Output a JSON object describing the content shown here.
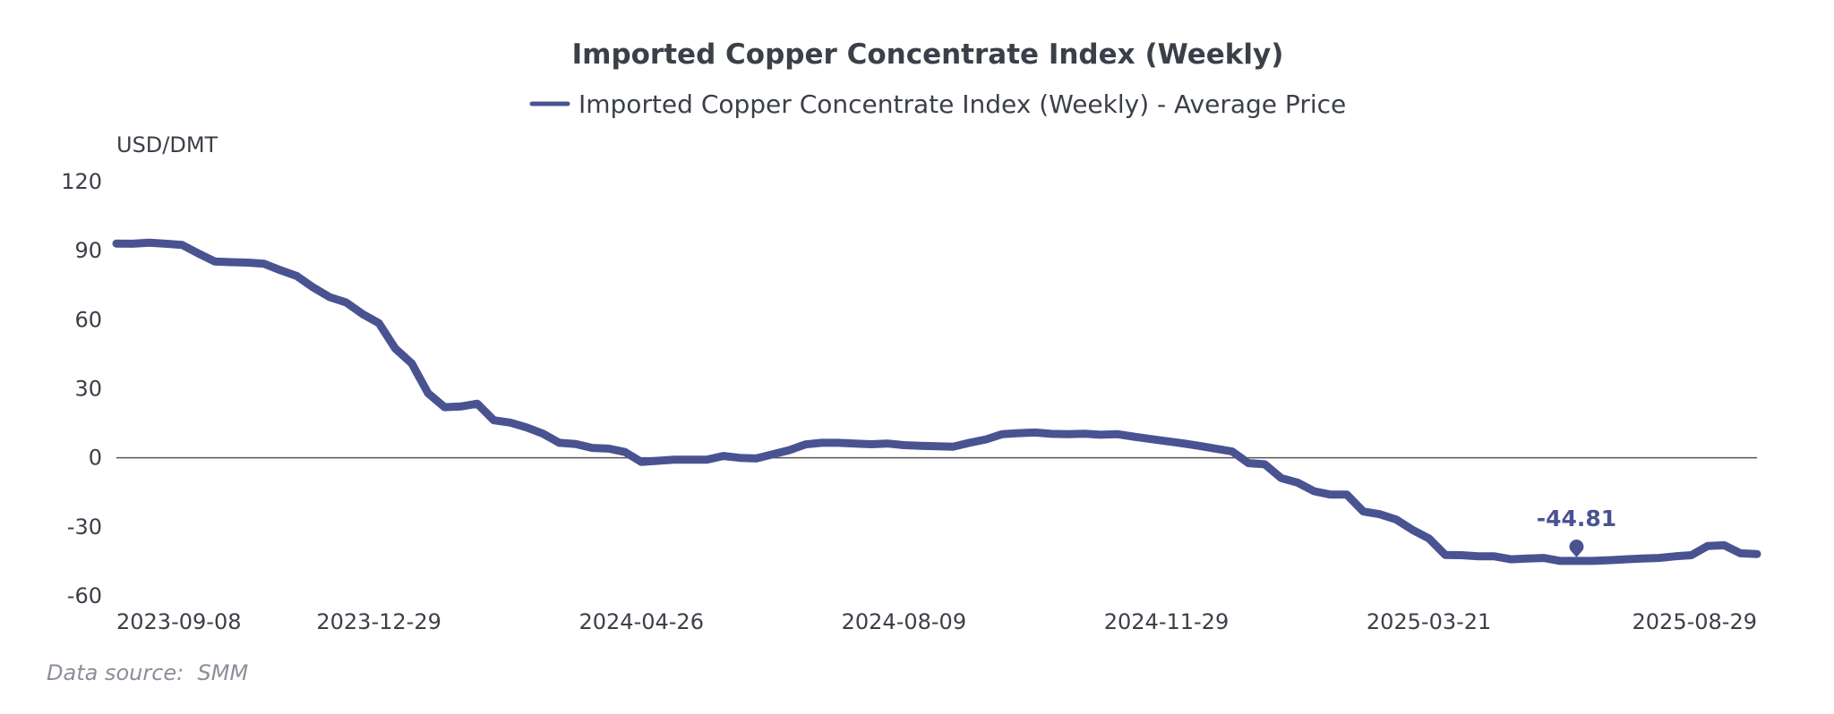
{
  "colors": {
    "series": "#4a5391",
    "text": "#3b3f48",
    "zero_line": "#555555",
    "source": "#8a8f99"
  },
  "source_text": "Data source:  SMM",
  "chart_data": {
    "type": "line",
    "title": "Imported Copper Concentrate Index (Weekly)",
    "unit_label": "USD/DMT",
    "ylim": [
      -60,
      120
    ],
    "y_ticks": [
      120,
      90,
      60,
      30,
      0,
      -30,
      -60
    ],
    "x_tick_labels": [
      "2023-09-08",
      "2023-12-29",
      "2024-04-26",
      "2024-08-09",
      "2024-11-29",
      "2025-03-21",
      "2025-08-29"
    ],
    "grid": false,
    "legend_position": "top",
    "annotation": {
      "x_index": 89,
      "value": -44.81,
      "text": "-44.81"
    },
    "series": [
      {
        "name": "Imported Copper Concentrate Index (Weekly) - Average Price",
        "values": [
          93.1,
          93.0,
          93.5,
          93.0,
          92.5,
          88.8,
          85.3,
          85.0,
          84.8,
          84.3,
          81.5,
          79.0,
          74.0,
          69.8,
          67.5,
          62.5,
          58.5,
          47.5,
          41.0,
          28.0,
          22.0,
          22.3,
          23.5,
          16.3,
          15.3,
          13.2,
          10.5,
          6.5,
          6.0,
          4.3,
          4.0,
          2.5,
          -1.8,
          -1.3,
          -0.8,
          -0.8,
          -0.8,
          0.8,
          0.0,
          -0.3,
          1.5,
          3.3,
          5.8,
          6.5,
          6.5,
          6.2,
          5.9,
          6.2,
          5.5,
          5.2,
          5.0,
          4.8,
          6.5,
          8.0,
          10.3,
          10.7,
          11.0,
          10.4,
          10.3,
          10.5,
          10.0,
          10.3,
          9.2,
          8.2,
          7.2,
          6.3,
          5.2,
          4.0,
          2.8,
          -2.3,
          -2.8,
          -8.8,
          -10.8,
          -14.5,
          -16.0,
          -16.0,
          -23.3,
          -24.5,
          -26.8,
          -31.3,
          -35.0,
          -42.2,
          -42.3,
          -42.8,
          -42.8,
          -44.1,
          -43.8,
          -43.5,
          -44.8,
          -44.8,
          -44.8,
          -44.5,
          -44.1,
          -43.8,
          -43.5,
          -42.8,
          -42.3,
          -38.3,
          -38.0,
          -41.5,
          -41.8
        ]
      }
    ]
  }
}
